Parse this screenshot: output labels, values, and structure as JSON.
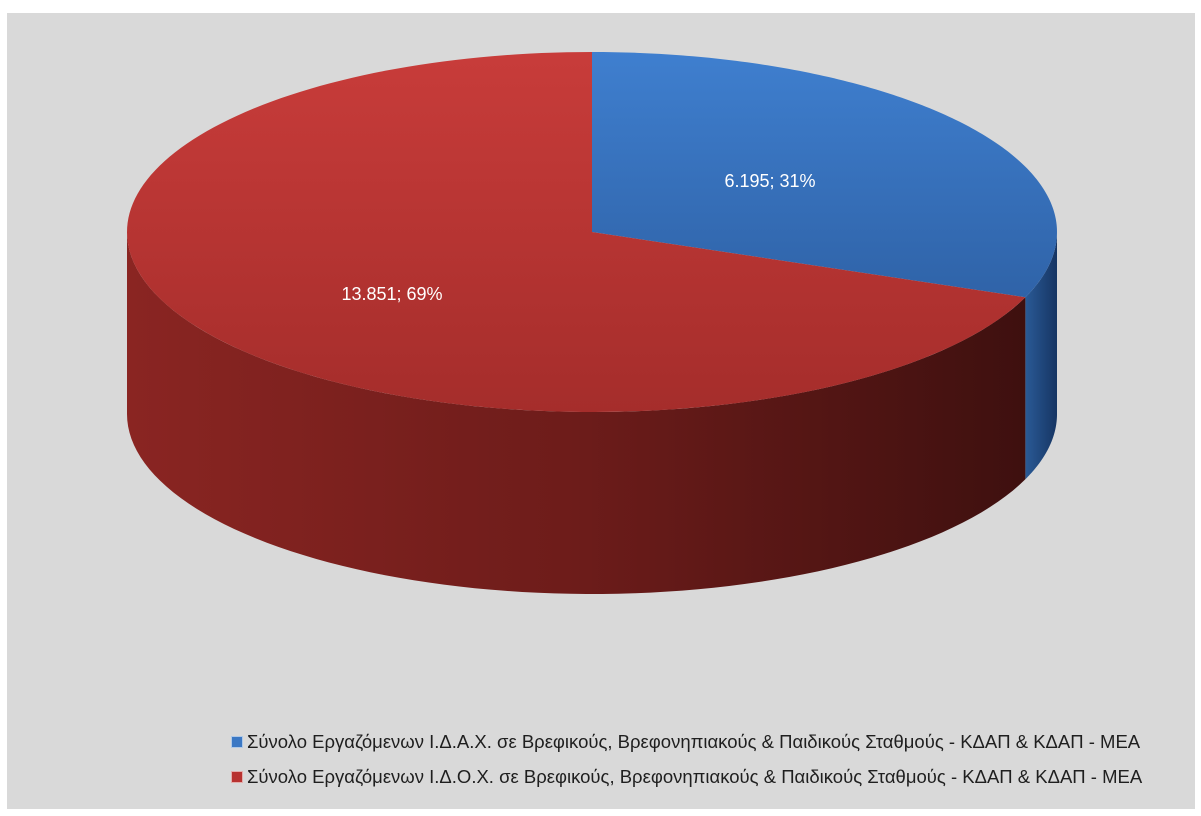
{
  "chart_data": {
    "type": "pie",
    "title": "",
    "style": "3d",
    "legend_position": "bottom",
    "slices": [
      {
        "name": "Σύνολο Εργαζόμενων Ι.Δ.Α.Χ. σε Βρεφικούς, Βρεφονηπιακούς & Παιδικούς Σταθμούς - ΚΔΑΠ & ΚΔΑΠ - ΜΕΑ",
        "value": 6195,
        "percent": 31,
        "label": "6.195; 31%",
        "color": "#3b78c4",
        "side_color": "#1f4a80"
      },
      {
        "name": "Σύνολο Εργαζόμενων Ι.Δ.Ο.Χ. σε Βρεφικούς, Βρεφονηπιακούς & Παιδικούς Σταθμούς - ΚΔΑΠ & ΚΔΑΠ - ΜΕΑ",
        "value": 13851,
        "percent": 69,
        "label": "13.851; 69%",
        "color": "#b83230",
        "side_color": "#6a1a18"
      }
    ]
  }
}
